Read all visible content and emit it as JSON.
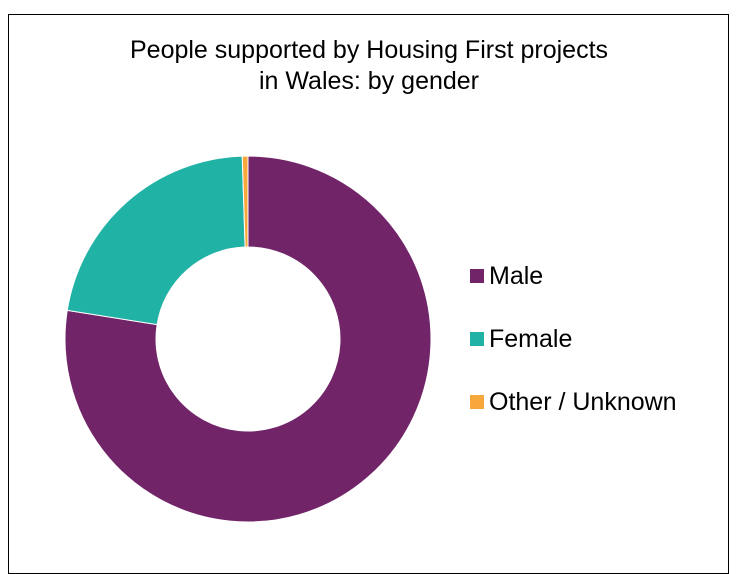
{
  "chart_data": {
    "type": "pie",
    "title": "People supported by Housing First projects in Wales: by gender",
    "title_lines": [
      "People supported by Housing First projects",
      "in Wales: by gender"
    ],
    "categories": [
      "Male",
      "Female",
      "Other / Unknown"
    ],
    "values": [
      77.5,
      22.0,
      0.5
    ],
    "unit": "%",
    "colors": [
      "#722469",
      "#21B2A6",
      "#F8A73A"
    ],
    "legend_position": "right",
    "donut": true
  }
}
